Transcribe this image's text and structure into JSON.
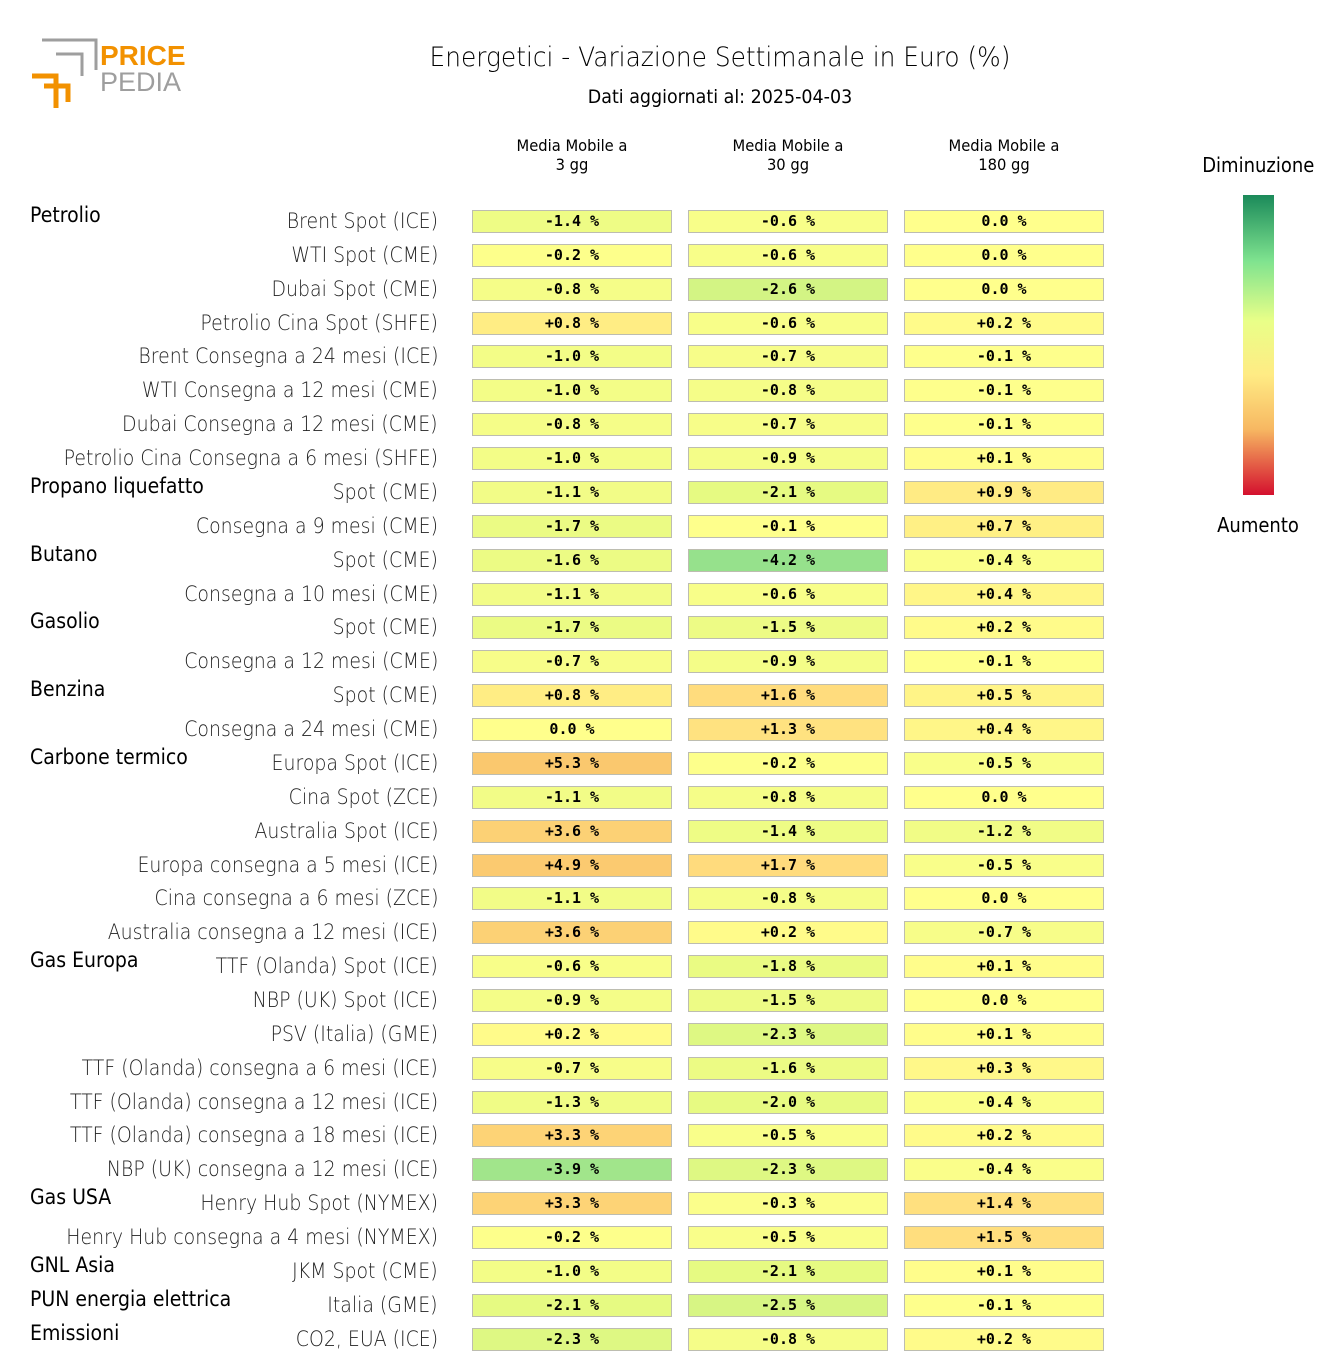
{
  "brand": {
    "word1": "PRICE",
    "word2": "PEDIA"
  },
  "title": "Energetici - Variazione Settimanale in Euro (%)",
  "subtitle": "Dati aggiornati al: 2025-04-03",
  "legend": {
    "top": "Diminuzione",
    "bottom": "Aumento",
    "colors": [
      "#1b8a5a",
      "#7fe38f",
      "#e9ff88",
      "#ffeb84",
      "#f7b862",
      "#d4102e"
    ]
  },
  "chart_data": {
    "type": "heatmap",
    "title": "Energetici - Variazione Settimanale in Euro (%)",
    "columns": [
      "Media Mobile a\n3 gg",
      "Media Mobile a\n30 gg",
      "Media Mobile a\n180 gg"
    ],
    "unit": "%",
    "groups": [
      {
        "name": "Petrolio",
        "rows": [
          {
            "label": "Brent Spot (ICE)",
            "values": [
              -1.4,
              -0.6,
              0.0
            ]
          },
          {
            "label": "WTI Spot (CME)",
            "values": [
              -0.2,
              -0.6,
              0.0
            ]
          },
          {
            "label": "Dubai Spot (CME)",
            "values": [
              -0.8,
              -2.6,
              0.0
            ]
          },
          {
            "label": "Petrolio Cina Spot (SHFE)",
            "values": [
              0.8,
              -0.6,
              0.2
            ]
          },
          {
            "label": "Brent Consegna a 24 mesi (ICE)",
            "values": [
              -1.0,
              -0.7,
              -0.1
            ]
          },
          {
            "label": "WTI Consegna a 12 mesi (CME)",
            "values": [
              -1.0,
              -0.8,
              -0.1
            ]
          },
          {
            "label": "Dubai Consegna a 12 mesi (CME)",
            "values": [
              -0.8,
              -0.7,
              -0.1
            ]
          },
          {
            "label": "Petrolio Cina Consegna a 6 mesi (SHFE)",
            "values": [
              -1.0,
              -0.9,
              0.1
            ]
          }
        ]
      },
      {
        "name": "Propano liquefatto",
        "rows": [
          {
            "label": "Spot (CME)",
            "values": [
              -1.1,
              -2.1,
              0.9
            ]
          },
          {
            "label": "Consegna a 9 mesi (CME)",
            "values": [
              -1.7,
              -0.1,
              0.7
            ]
          }
        ]
      },
      {
        "name": "Butano",
        "rows": [
          {
            "label": "Spot (CME)",
            "values": [
              -1.6,
              -4.2,
              -0.4
            ]
          },
          {
            "label": "Consegna a 10 mesi (CME)",
            "values": [
              -1.1,
              -0.6,
              0.4
            ]
          }
        ]
      },
      {
        "name": "Gasolio",
        "rows": [
          {
            "label": "Spot (CME)",
            "values": [
              -1.7,
              -1.5,
              0.2
            ]
          },
          {
            "label": "Consegna a 12 mesi (CME)",
            "values": [
              -0.7,
              -0.9,
              -0.1
            ]
          }
        ]
      },
      {
        "name": "Benzina",
        "rows": [
          {
            "label": "Spot (CME)",
            "values": [
              0.8,
              1.6,
              0.5
            ]
          },
          {
            "label": "Consegna a 24 mesi (CME)",
            "values": [
              0.0,
              1.3,
              0.4
            ]
          }
        ]
      },
      {
        "name": "Carbone termico",
        "rows": [
          {
            "label": "Europa Spot (ICE)",
            "values": [
              5.3,
              -0.2,
              -0.5
            ]
          },
          {
            "label": "Cina Spot (ZCE)",
            "values": [
              -1.1,
              -0.8,
              0.0
            ]
          },
          {
            "label": "Australia Spot (ICE)",
            "values": [
              3.6,
              -1.4,
              -1.2
            ]
          },
          {
            "label": "Europa consegna a 5 mesi (ICE)",
            "values": [
              4.9,
              1.7,
              -0.5
            ]
          },
          {
            "label": "Cina consegna a 6 mesi (ZCE)",
            "values": [
              -1.1,
              -0.8,
              0.0
            ]
          },
          {
            "label": "Australia consegna a 12 mesi (ICE)",
            "values": [
              3.6,
              0.2,
              -0.7
            ]
          }
        ]
      },
      {
        "name": "Gas Europa",
        "rows": [
          {
            "label": "TTF (Olanda) Spot (ICE)",
            "values": [
              -0.6,
              -1.8,
              0.1
            ]
          },
          {
            "label": "NBP (UK) Spot (ICE)",
            "values": [
              -0.9,
              -1.5,
              0.0
            ]
          },
          {
            "label": "PSV (Italia) (GME)",
            "values": [
              0.2,
              -2.3,
              0.1
            ]
          },
          {
            "label": "TTF (Olanda) consegna a 6 mesi (ICE)",
            "values": [
              -0.7,
              -1.6,
              0.3
            ]
          },
          {
            "label": "TTF (Olanda) consegna a 12 mesi (ICE)",
            "values": [
              -1.3,
              -2.0,
              -0.4
            ]
          },
          {
            "label": "TTF (Olanda) consegna a 18 mesi (ICE)",
            "values": [
              3.3,
              -0.5,
              0.2
            ]
          },
          {
            "label": "NBP (UK) consegna a 12 mesi (ICE)",
            "values": [
              -3.9,
              -2.3,
              -0.4
            ]
          }
        ]
      },
      {
        "name": "Gas USA",
        "rows": [
          {
            "label": "Henry Hub Spot (NYMEX)",
            "values": [
              3.3,
              -0.3,
              1.4
            ]
          },
          {
            "label": "Henry Hub consegna a 4 mesi (NYMEX)",
            "values": [
              -0.2,
              -0.5,
              1.5
            ]
          }
        ]
      },
      {
        "name": "GNL Asia",
        "rows": [
          {
            "label": "JKM Spot (CME)",
            "values": [
              -1.0,
              -2.1,
              0.1
            ]
          }
        ]
      },
      {
        "name": "PUN energia elettrica",
        "rows": [
          {
            "label": "Italia (GME)",
            "values": [
              -2.1,
              -2.5,
              -0.1
            ]
          }
        ]
      },
      {
        "name": "Emissioni",
        "rows": [
          {
            "label": "CO2, EUA (ICE)",
            "values": [
              -2.3,
              -0.8,
              0.2
            ]
          }
        ]
      }
    ]
  }
}
